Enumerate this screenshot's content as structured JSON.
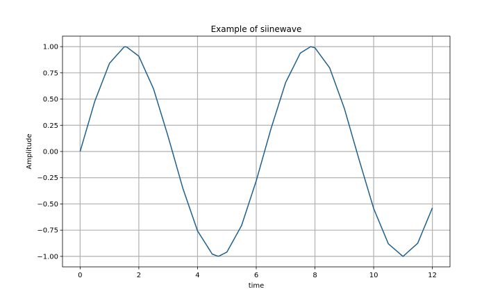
{
  "chart_data": {
    "type": "line",
    "title": "Example of siinewave",
    "xlabel": "time",
    "ylabel": "Amplitude",
    "xlim": [
      -0.6,
      12.6
    ],
    "ylim": [
      -1.1,
      1.1
    ],
    "grid": true,
    "x_ticks": [
      0,
      2,
      4,
      6,
      8,
      10,
      12
    ],
    "x_tick_labels": [
      "0",
      "2",
      "4",
      "6",
      "8",
      "10",
      "12"
    ],
    "y_ticks": [
      1.0,
      0.75,
      0.5,
      0.25,
      0.0,
      -0.25,
      -0.5,
      -0.75,
      -1.0
    ],
    "y_tick_labels": [
      "1.00",
      "0.75",
      "0.50",
      "0.25",
      "0.00",
      "−0.25",
      "−0.50",
      "−0.75",
      "−1.00"
    ],
    "series": [
      {
        "color": "#1f5f8b",
        "x": [
          0,
          0.5,
          1,
          1.5,
          1.5708,
          2,
          2.5,
          3,
          3.5,
          4,
          4.5,
          4.7124,
          5,
          5.5,
          6,
          6.5,
          7,
          7.5,
          7.854,
          8,
          8.5,
          9,
          9.5,
          10,
          10.5,
          10.9956,
          11,
          11.5,
          12
        ],
        "y": [
          0,
          0.479,
          0.841,
          0.997,
          1.0,
          0.909,
          0.598,
          0.141,
          -0.351,
          -0.757,
          -0.978,
          -1.0,
          -0.959,
          -0.706,
          -0.279,
          0.215,
          0.657,
          0.938,
          1.0,
          0.989,
          0.798,
          0.412,
          -0.075,
          -0.544,
          -0.88,
          -1.0,
          -1.0,
          -0.875,
          -0.537
        ]
      }
    ]
  }
}
